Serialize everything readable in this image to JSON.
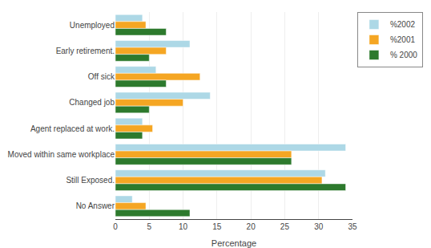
{
  "chart_data": {
    "type": "bar",
    "orientation": "horizontal",
    "categories": [
      "Unemployed",
      "Early retirement.",
      "Off sick",
      "Changed job",
      "Agent replaced at work.",
      "Moved within same workplace",
      "Still Exposed.",
      "No Answer"
    ],
    "series": [
      {
        "name": "%2002",
        "color": "#add8e6",
        "values": [
          4,
          11,
          6,
          14,
          4,
          34,
          31,
          2.5
        ]
      },
      {
        "name": "%2001",
        "color": "#f5a623",
        "values": [
          4.5,
          7.5,
          12.5,
          10,
          5.5,
          26,
          30.5,
          4.5
        ]
      },
      {
        "name": "% 2000",
        "color": "#2d7a2d",
        "values": [
          7.5,
          5,
          7.5,
          5,
          4,
          26,
          34,
          11
        ]
      }
    ],
    "xlabel": "Percentage",
    "xlim": [
      0,
      35
    ],
    "xticks": [
      0,
      5,
      10,
      15,
      20,
      25,
      30,
      35
    ],
    "grid": true,
    "legend": "upper right"
  }
}
